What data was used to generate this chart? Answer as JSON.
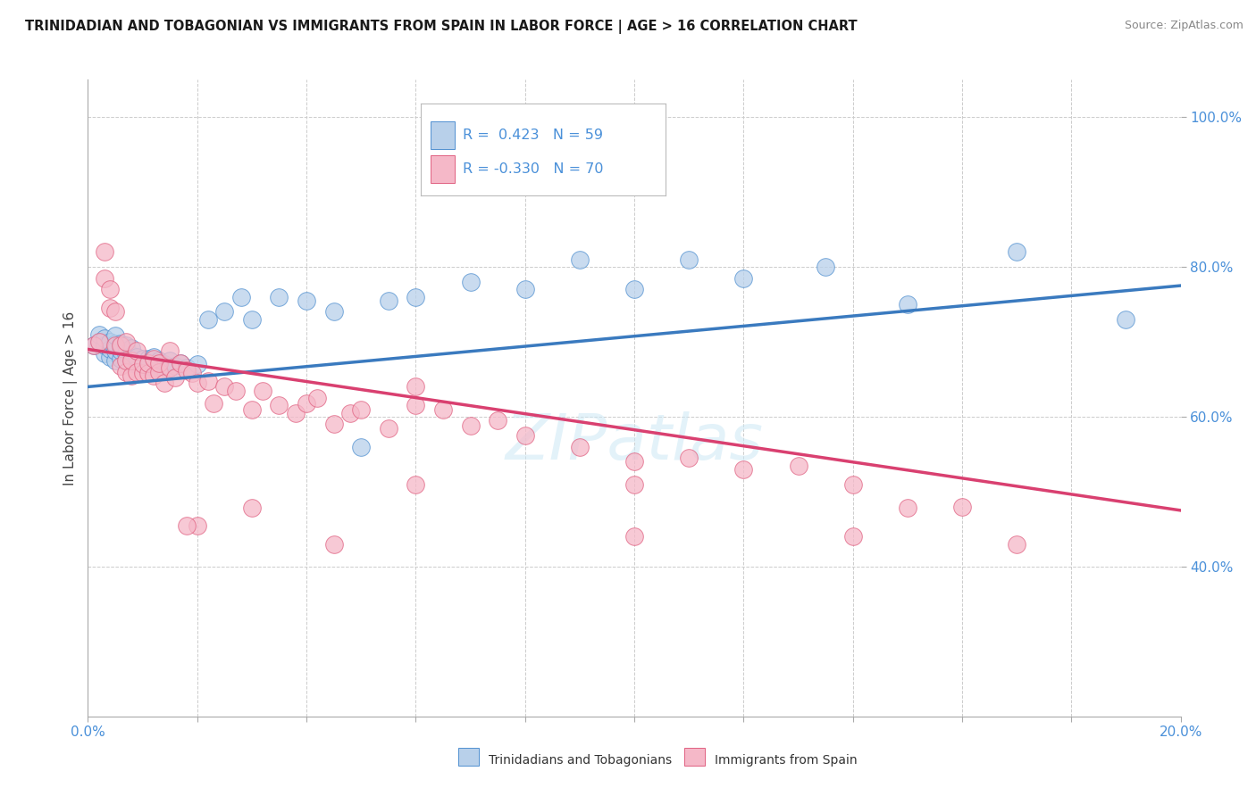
{
  "title": "TRINIDADIAN AND TOBAGONIAN VS IMMIGRANTS FROM SPAIN IN LABOR FORCE | AGE > 16 CORRELATION CHART",
  "source": "Source: ZipAtlas.com",
  "ylabel": "In Labor Force | Age > 16",
  "ytick_vals": [
    0.4,
    0.6,
    0.8,
    1.0
  ],
  "ytick_labels": [
    "40.0%",
    "60.0%",
    "80.0%",
    "100.0%"
  ],
  "xmin": 0.0,
  "xmax": 0.2,
  "ymin": 0.2,
  "ymax": 1.05,
  "blue_R": "0.423",
  "blue_N": "59",
  "pink_R": "-0.330",
  "pink_N": "70",
  "blue_fill": "#b8d0ea",
  "pink_fill": "#f5b8c8",
  "blue_edge": "#5090d0",
  "pink_edge": "#e06080",
  "blue_line": "#3a7abf",
  "pink_line": "#d94070",
  "blue_label": "Trinidadians and Tobagonians",
  "pink_label": "Immigrants from Spain",
  "background_color": "#ffffff",
  "grid_color": "#cccccc",
  "title_color": "#1a1a1a",
  "axis_color": "#4a90d9",
  "blue_trend_y0": 0.64,
  "blue_trend_y1": 0.775,
  "pink_trend_y0": 0.69,
  "pink_trend_y1": 0.475,
  "blue_x": [
    0.001,
    0.002,
    0.002,
    0.003,
    0.003,
    0.003,
    0.004,
    0.004,
    0.004,
    0.005,
    0.005,
    0.005,
    0.005,
    0.006,
    0.006,
    0.006,
    0.007,
    0.007,
    0.007,
    0.008,
    0.008,
    0.008,
    0.009,
    0.009,
    0.01,
    0.01,
    0.011,
    0.011,
    0.012,
    0.012,
    0.013,
    0.013,
    0.014,
    0.015,
    0.015,
    0.016,
    0.017,
    0.018,
    0.02,
    0.022,
    0.025,
    0.028,
    0.03,
    0.035,
    0.04,
    0.045,
    0.05,
    0.055,
    0.06,
    0.07,
    0.08,
    0.09,
    0.1,
    0.11,
    0.12,
    0.135,
    0.15,
    0.17,
    0.19
  ],
  "blue_y": [
    0.695,
    0.7,
    0.71,
    0.685,
    0.695,
    0.705,
    0.68,
    0.69,
    0.7,
    0.675,
    0.688,
    0.698,
    0.708,
    0.678,
    0.688,
    0.698,
    0.675,
    0.685,
    0.695,
    0.672,
    0.682,
    0.692,
    0.67,
    0.68,
    0.668,
    0.678,
    0.668,
    0.678,
    0.665,
    0.68,
    0.662,
    0.675,
    0.67,
    0.665,
    0.675,
    0.668,
    0.672,
    0.665,
    0.67,
    0.73,
    0.74,
    0.76,
    0.73,
    0.76,
    0.755,
    0.74,
    0.56,
    0.755,
    0.76,
    0.78,
    0.77,
    0.81,
    0.77,
    0.81,
    0.785,
    0.8,
    0.75,
    0.82,
    0.73
  ],
  "pink_x": [
    0.001,
    0.002,
    0.003,
    0.003,
    0.004,
    0.004,
    0.005,
    0.005,
    0.006,
    0.006,
    0.007,
    0.007,
    0.007,
    0.008,
    0.008,
    0.009,
    0.009,
    0.01,
    0.01,
    0.011,
    0.011,
    0.012,
    0.012,
    0.013,
    0.013,
    0.014,
    0.015,
    0.015,
    0.016,
    0.017,
    0.018,
    0.019,
    0.02,
    0.022,
    0.023,
    0.025,
    0.027,
    0.03,
    0.032,
    0.035,
    0.038,
    0.04,
    0.042,
    0.045,
    0.048,
    0.05,
    0.055,
    0.06,
    0.065,
    0.07,
    0.075,
    0.08,
    0.09,
    0.1,
    0.11,
    0.12,
    0.13,
    0.14,
    0.15,
    0.16,
    0.17,
    0.02,
    0.03,
    0.06,
    0.14,
    0.06,
    0.1,
    0.018,
    0.045,
    0.1
  ],
  "pink_y": [
    0.695,
    0.7,
    0.82,
    0.785,
    0.745,
    0.77,
    0.695,
    0.74,
    0.668,
    0.695,
    0.66,
    0.675,
    0.7,
    0.655,
    0.675,
    0.66,
    0.688,
    0.658,
    0.67,
    0.658,
    0.672,
    0.655,
    0.678,
    0.66,
    0.672,
    0.645,
    0.665,
    0.688,
    0.652,
    0.672,
    0.662,
    0.658,
    0.645,
    0.648,
    0.618,
    0.64,
    0.635,
    0.61,
    0.635,
    0.615,
    0.605,
    0.618,
    0.625,
    0.59,
    0.605,
    0.61,
    0.585,
    0.615,
    0.61,
    0.588,
    0.595,
    0.575,
    0.56,
    0.54,
    0.545,
    0.53,
    0.535,
    0.51,
    0.478,
    0.48,
    0.43,
    0.455,
    0.478,
    0.64,
    0.44,
    0.51,
    0.51,
    0.455,
    0.43,
    0.44
  ]
}
